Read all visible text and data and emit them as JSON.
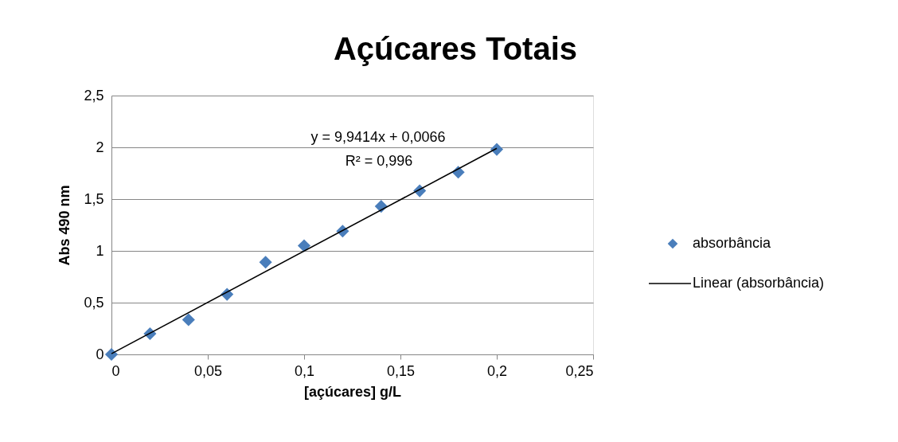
{
  "chart_data": {
    "type": "scatter",
    "title": "Açúcares Totais",
    "xlabel": "[açúcares] g/L",
    "ylabel": "Abs 490 nm",
    "x": [
      0,
      0.02,
      0.04,
      0.06,
      0.08,
      0.1,
      0.12,
      0.14,
      0.16,
      0.18,
      0.2
    ],
    "series": [
      {
        "name": "absorbância",
        "color": "#4a7ebb",
        "marker": "diamond",
        "values": [
          0,
          0.2,
          0.335,
          0.58,
          0.89,
          1.05,
          1.19,
          1.43,
          1.58,
          1.76,
          1.98
        ]
      },
      {
        "name": "Linear (absorbância)",
        "type": "line",
        "color": "#000000",
        "x": [
          0,
          0.2
        ],
        "values": [
          0.007,
          1.99
        ]
      }
    ],
    "annotations": [
      "y = 9,9414x + 0,0066",
      "R² = 0,996"
    ],
    "xlim": [
      0,
      0.25
    ],
    "xticks": [
      {
        "value": 0,
        "label": "0"
      },
      {
        "value": 0.05,
        "label": "0,05"
      },
      {
        "value": 0.1,
        "label": "0,1"
      },
      {
        "value": 0.15,
        "label": "0,15"
      },
      {
        "value": 0.2,
        "label": "0,2"
      },
      {
        "value": 0.25,
        "label": "0,25"
      }
    ],
    "ylim": [
      0,
      2.5
    ],
    "yticks": [
      {
        "value": 0,
        "label": "0"
      },
      {
        "value": 0.5,
        "label": "0,5"
      },
      {
        "value": 1,
        "label": "1"
      },
      {
        "value": 1.5,
        "label": "1,5"
      },
      {
        "value": 2,
        "label": "2"
      },
      {
        "value": 2.5,
        "label": "2,5"
      }
    ],
    "grid": "y",
    "legend": "right"
  }
}
